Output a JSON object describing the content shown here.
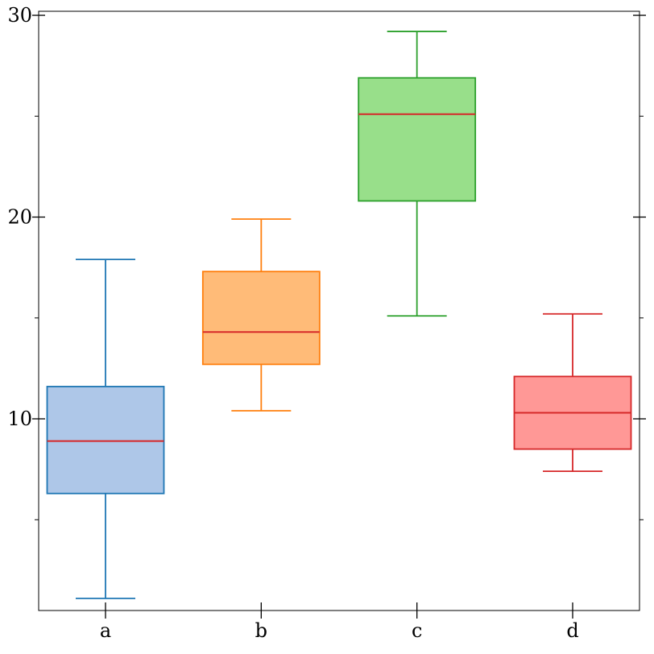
{
  "chart_data": {
    "type": "box",
    "title": "",
    "xlabel": "",
    "ylabel": "",
    "categories": [
      "a",
      "b",
      "c",
      "d"
    ],
    "ylim": [
      0.5,
      30.2
    ],
    "y_ticks_major": [
      10,
      20,
      30
    ],
    "y_tick_labels": [
      "10",
      "20",
      "30"
    ],
    "y_ticks_minor": [
      5,
      15,
      25
    ],
    "median_color": "#d62728",
    "series": [
      {
        "category": "a",
        "whisker_low": 1.1,
        "q1": 6.3,
        "median": 8.9,
        "q3": 11.6,
        "whisker_high": 17.9,
        "stroke": "#1f77b4",
        "fill": "#aec7e8"
      },
      {
        "category": "b",
        "whisker_low": 10.4,
        "q1": 12.7,
        "median": 14.3,
        "q3": 17.3,
        "whisker_high": 19.9,
        "stroke": "#ff7f0e",
        "fill": "#ffbb78"
      },
      {
        "category": "c",
        "whisker_low": 15.1,
        "q1": 20.8,
        "median": 25.1,
        "q3": 26.9,
        "whisker_high": 29.2,
        "stroke": "#2ca02c",
        "fill": "#98df8a"
      },
      {
        "category": "d",
        "whisker_low": 7.4,
        "q1": 8.5,
        "median": 10.3,
        "q3": 12.1,
        "whisker_high": 15.2,
        "stroke": "#d62728",
        "fill": "#ff9896"
      }
    ]
  }
}
